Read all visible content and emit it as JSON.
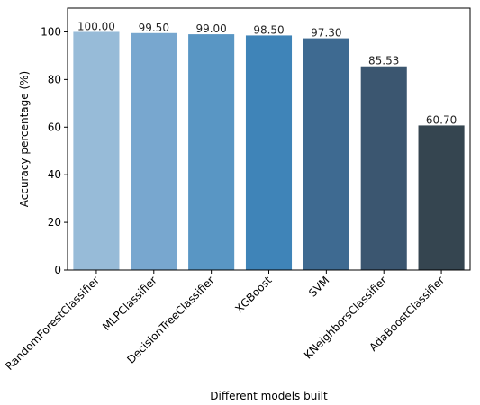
{
  "chart_data": {
    "type": "bar",
    "categories": [
      "RandomForestClassifier",
      "MLPClassifier",
      "DecisionTreeClassifier",
      "XGBoost",
      "SVM",
      "KNeighborsClassifier",
      "AdaBoostClassifier"
    ],
    "values": [
      100.0,
      99.5,
      99.0,
      98.5,
      97.3,
      85.53,
      60.7
    ],
    "data_labels": [
      "100.00",
      "99.50",
      "99.00",
      "98.50",
      "97.30",
      "85.53",
      "60.70"
    ],
    "colors": [
      "#97bbd8",
      "#78a7cf",
      "#5996c4",
      "#3f84b8",
      "#3e6a91",
      "#3b5670",
      "#354550"
    ],
    "xlabel": "Different models built",
    "ylabel": "Accuracy percentage (%)",
    "ylim": [
      0,
      110
    ],
    "yticks": [
      0,
      20,
      40,
      60,
      80,
      100
    ],
    "grid": false,
    "legend": "none"
  }
}
